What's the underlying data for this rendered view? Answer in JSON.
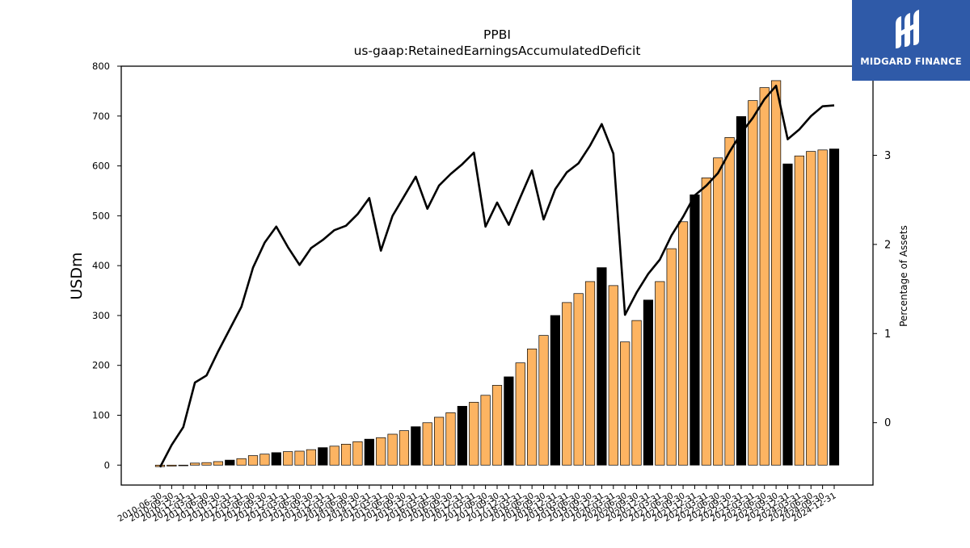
{
  "logo": {
    "name": "MIDGARD FINANCE",
    "icon": "midgard-logo-icon",
    "background": "#2f5aa8"
  },
  "chart_data": {
    "type": "bar",
    "title": "PPBI",
    "subtitle": "us-gaap:RetainedEarningsAccumulatedDeficit",
    "ylabel": "USDm",
    "y2label": "Percentage of Assets",
    "ylim": [
      -40,
      800
    ],
    "y2lim": [
      -0.7,
      4.0
    ],
    "yticks": [
      0,
      100,
      200,
      300,
      400,
      500,
      600,
      700,
      800
    ],
    "y2ticks": [
      0,
      1,
      2,
      3
    ],
    "colors": {
      "bar_default": "#fdb462",
      "bar_highlight": "#000000",
      "line": "#000000"
    },
    "categories": [
      "2010-06-30",
      "2010-09-30",
      "2010-12-31",
      "2011-03-31",
      "2011-06-30",
      "2011-09-30",
      "2011-12-31",
      "2012-03-31",
      "2012-06-30",
      "2012-09-30",
      "2012-12-31",
      "2013-03-31",
      "2013-06-30",
      "2013-09-30",
      "2013-12-31",
      "2014-03-31",
      "2014-06-30",
      "2014-09-30",
      "2014-12-31",
      "2015-03-31",
      "2015-06-30",
      "2015-09-30",
      "2015-12-31",
      "2016-03-31",
      "2016-06-30",
      "2016-09-30",
      "2016-12-31",
      "2017-03-31",
      "2017-06-30",
      "2017-09-30",
      "2017-12-31",
      "2018-03-31",
      "2018-06-30",
      "2018-09-30",
      "2018-12-31",
      "2019-03-31",
      "2019-06-30",
      "2019-09-30",
      "2019-12-31",
      "2020-03-31",
      "2020-06-30",
      "2020-09-30",
      "2020-12-31",
      "2021-03-31",
      "2021-06-30",
      "2021-09-30",
      "2021-12-31",
      "2022-03-31",
      "2022-06-30",
      "2022-09-30",
      "2022-12-31",
      "2023-03-31",
      "2023-06-30",
      "2023-09-30",
      "2023-12-31",
      "2024-03-31",
      "2024-06-30",
      "2024-09-30",
      "2024-12-31"
    ],
    "series": [
      {
        "kind": "bar",
        "axis": "left",
        "values": [
          -3,
          -2,
          -1,
          4,
          5,
          7,
          10,
          13,
          19,
          22,
          25,
          27,
          28,
          31,
          35,
          38,
          42,
          47,
          52,
          55,
          62,
          69,
          77,
          85,
          96,
          105,
          118,
          126,
          140,
          160,
          177,
          205,
          233,
          260,
          300,
          326,
          344,
          368,
          396,
          360,
          247,
          290,
          331,
          368,
          434,
          488,
          542,
          576,
          616,
          657,
          699,
          731,
          757,
          771,
          604,
          620,
          629,
          632,
          634
        ],
        "highlight_indices": [
          6,
          10,
          14,
          18,
          22,
          26,
          30,
          34,
          38,
          42,
          46,
          50,
          54,
          58
        ]
      },
      {
        "kind": "line",
        "axis": "right",
        "values": [
          -0.5,
          -0.25,
          -0.05,
          0.45,
          0.53,
          0.8,
          1.05,
          1.3,
          1.74,
          2.02,
          2.2,
          1.97,
          1.77,
          1.96,
          2.05,
          2.16,
          2.21,
          2.34,
          2.52,
          1.93,
          2.32,
          2.54,
          2.76,
          2.4,
          2.66,
          2.79,
          2.9,
          3.03,
          2.2,
          2.47,
          2.22,
          2.53,
          2.83,
          2.28,
          2.62,
          2.81,
          2.91,
          3.11,
          3.35,
          3.02,
          1.21,
          1.46,
          1.67,
          1.83,
          2.1,
          2.31,
          2.55,
          2.66,
          2.8,
          3.04,
          3.25,
          3.42,
          3.63,
          3.78,
          3.18,
          3.29,
          3.44,
          3.55,
          3.56
        ]
      }
    ]
  }
}
